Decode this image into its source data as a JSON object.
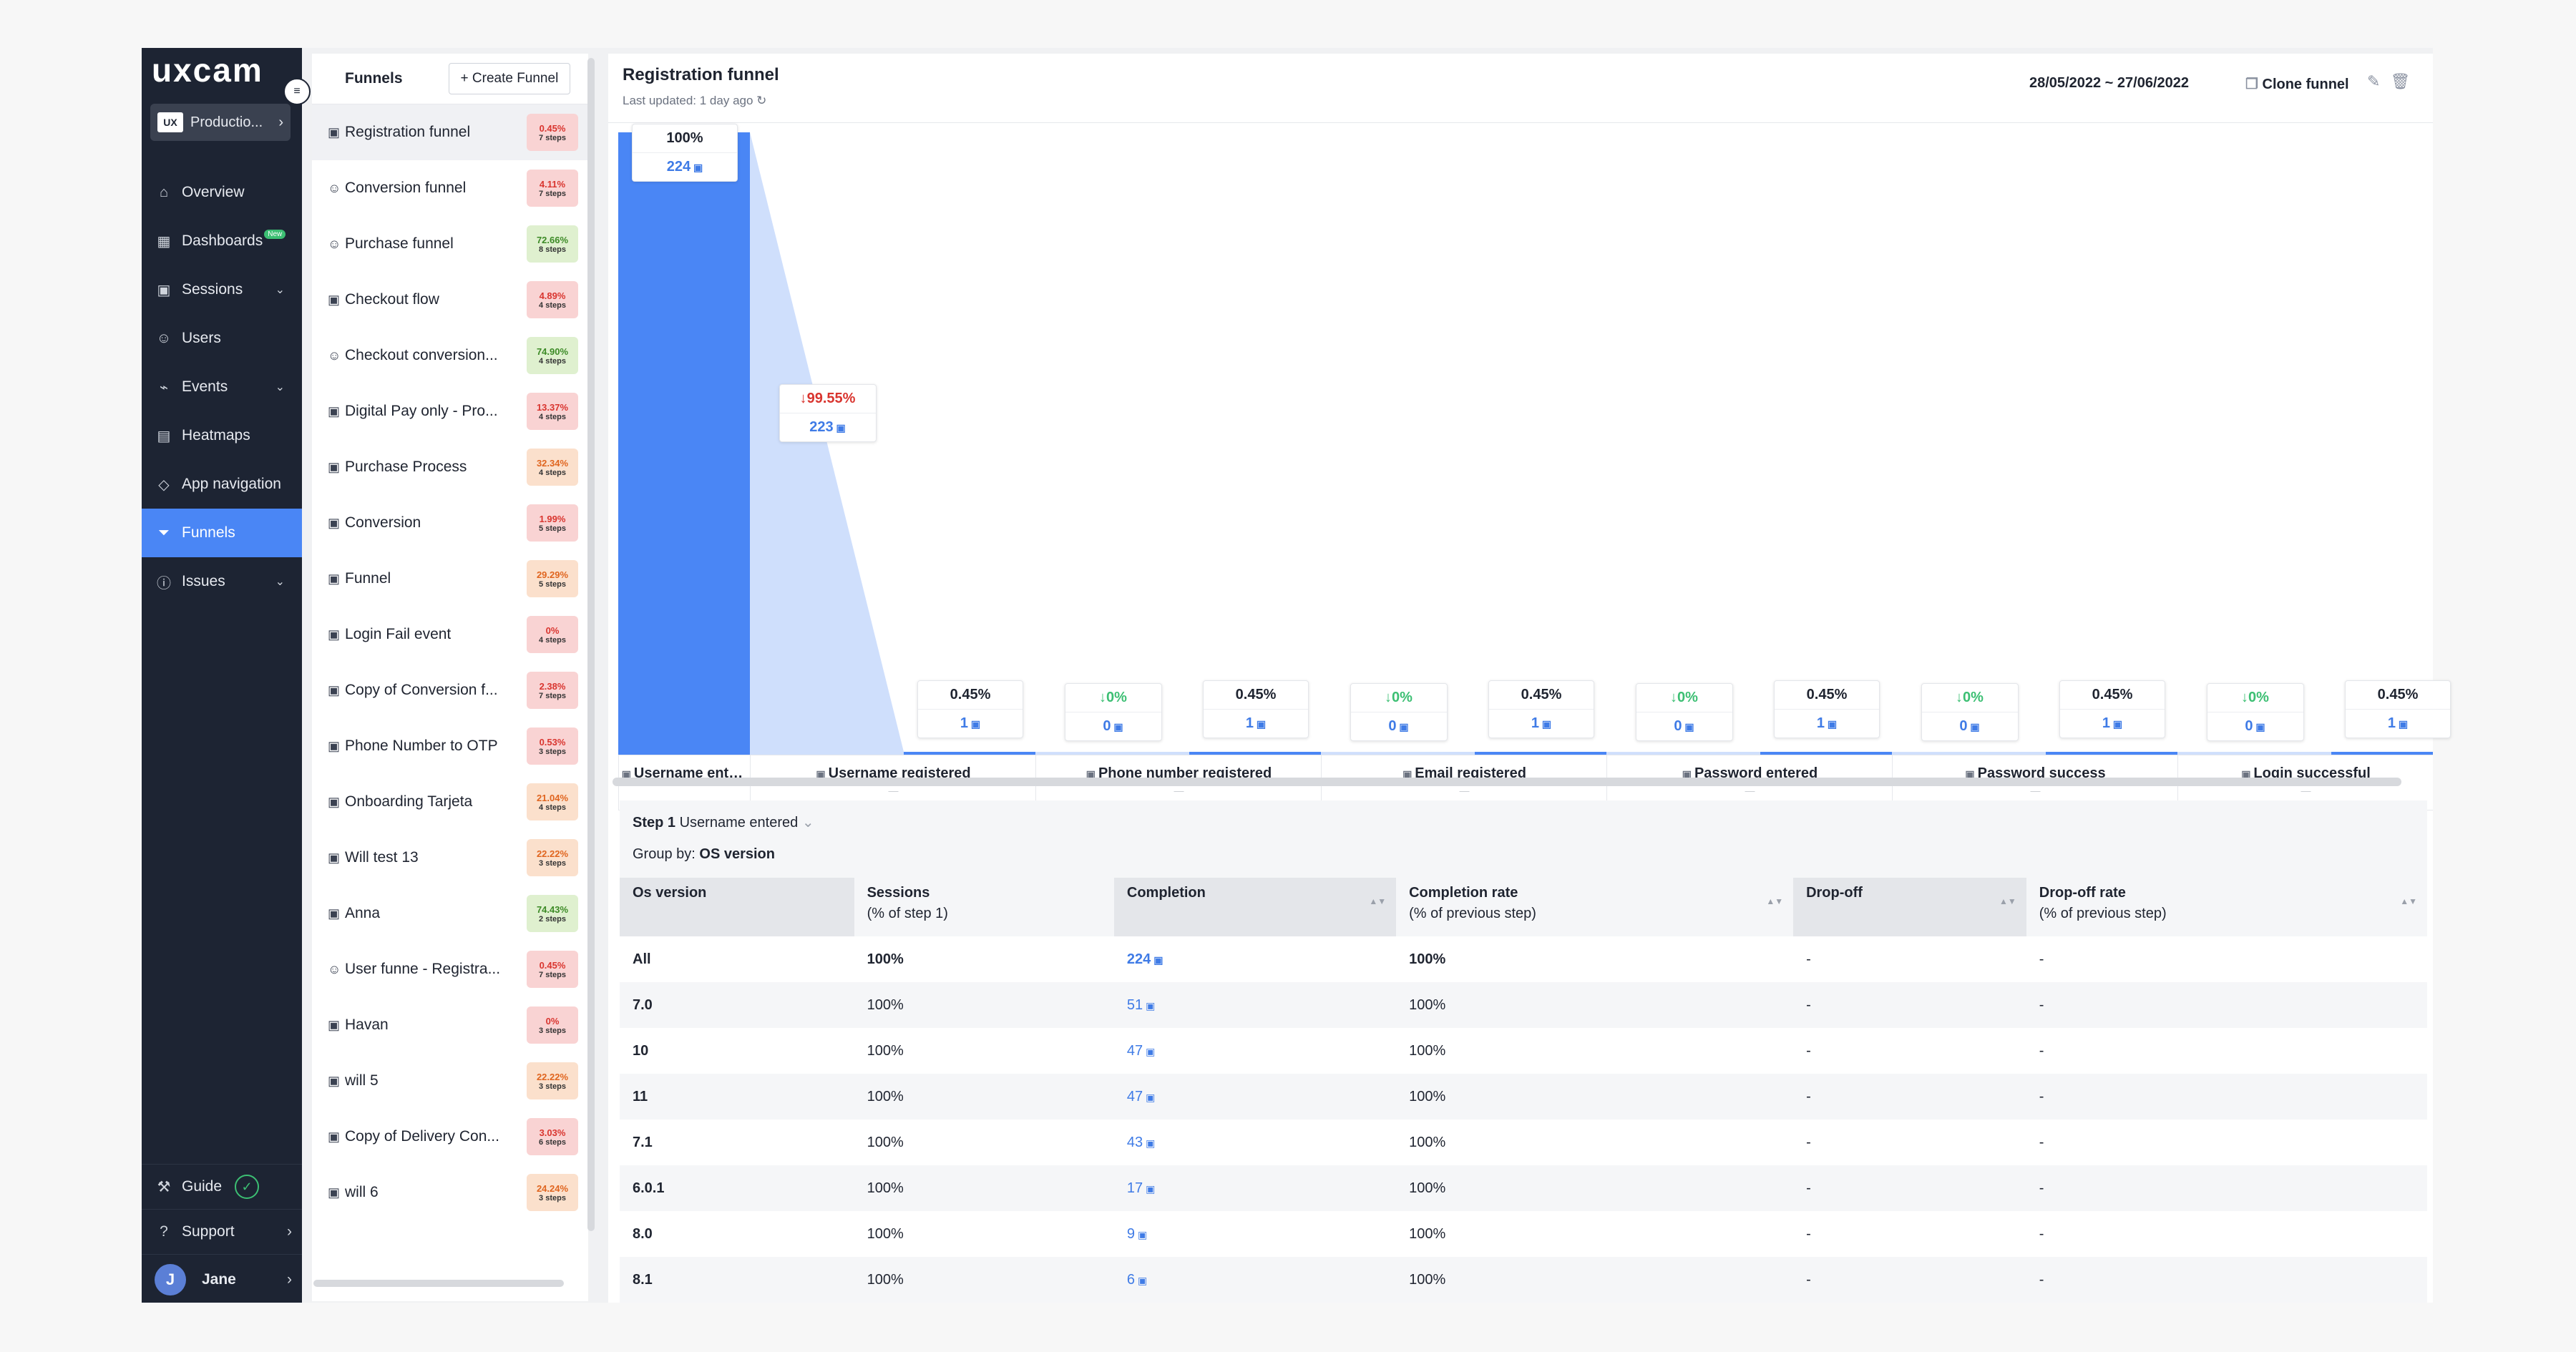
{
  "sidebar": {
    "logo": "uxcam",
    "project_badge": "UX",
    "project": "Productio...",
    "items": [
      {
        "label": "Overview",
        "icon": "home-icon",
        "caret": ""
      },
      {
        "label": "Dashboards",
        "icon": "dashboard-icon",
        "caret": "",
        "badge": "New"
      },
      {
        "label": "Sessions",
        "icon": "sessions-icon",
        "caret": "⌄"
      },
      {
        "label": "Users",
        "icon": "users-icon",
        "caret": ""
      },
      {
        "label": "Events",
        "icon": "events-icon",
        "caret": "⌄"
      },
      {
        "label": "Heatmaps",
        "icon": "heatmaps-icon",
        "caret": ""
      },
      {
        "label": "App navigation",
        "icon": "app-navigation-icon",
        "caret": ""
      },
      {
        "label": "Funnels",
        "icon": "funnel-icon",
        "caret": "",
        "active": true
      },
      {
        "label": "Issues",
        "icon": "issues-icon",
        "caret": "⌄"
      }
    ],
    "guide": "Guide",
    "support": "Support",
    "user_initial": "J",
    "user_name": "Jane"
  },
  "funnels": {
    "title": "Funnels",
    "create_label": "+ Create Funnel",
    "items": [
      {
        "name": "Registration funnel",
        "pct": "0.45%",
        "steps": "7 steps",
        "color": "red",
        "icon": "session-icon"
      },
      {
        "name": "Conversion funnel",
        "pct": "4.11%",
        "steps": "7 steps",
        "color": "red",
        "icon": "user-icon"
      },
      {
        "name": "Purchase funnel",
        "pct": "72.66%",
        "steps": "8 steps",
        "color": "green",
        "icon": "user-icon"
      },
      {
        "name": "Checkout flow",
        "pct": "4.89%",
        "steps": "4 steps",
        "color": "red",
        "icon": "session-icon"
      },
      {
        "name": "Checkout conversion...",
        "pct": "74.90%",
        "steps": "4 steps",
        "color": "green",
        "icon": "user-icon"
      },
      {
        "name": "Digital Pay only - Pro...",
        "pct": "13.37%",
        "steps": "4 steps",
        "color": "red",
        "icon": "session-icon"
      },
      {
        "name": "Purchase Process",
        "pct": "32.34%",
        "steps": "4 steps",
        "color": "orange",
        "icon": "session-icon"
      },
      {
        "name": "Conversion",
        "pct": "1.99%",
        "steps": "5 steps",
        "color": "red",
        "icon": "session-icon"
      },
      {
        "name": "Funnel",
        "pct": "29.29%",
        "steps": "5 steps",
        "color": "orange",
        "icon": "session-icon"
      },
      {
        "name": "Login Fail event",
        "pct": "0%",
        "steps": "4 steps",
        "color": "red",
        "icon": "session-icon"
      },
      {
        "name": "Copy of Conversion f...",
        "pct": "2.38%",
        "steps": "7 steps",
        "color": "red",
        "icon": "session-icon"
      },
      {
        "name": "Phone Number to OTP",
        "pct": "0.53%",
        "steps": "3 steps",
        "color": "red",
        "icon": "session-icon"
      },
      {
        "name": "Onboarding Tarjeta",
        "pct": "21.04%",
        "steps": "4 steps",
        "color": "orange",
        "icon": "session-icon"
      },
      {
        "name": "Will test 13",
        "pct": "22.22%",
        "steps": "3 steps",
        "color": "orange",
        "icon": "session-icon"
      },
      {
        "name": "Anna",
        "pct": "74.43%",
        "steps": "2 steps",
        "color": "green",
        "icon": "session-icon"
      },
      {
        "name": "User funne - Registra...",
        "pct": "0.45%",
        "steps": "7 steps",
        "color": "red",
        "icon": "user-icon"
      },
      {
        "name": "Havan",
        "pct": "0%",
        "steps": "3 steps",
        "color": "red",
        "icon": "session-icon"
      },
      {
        "name": "will 5",
        "pct": "22.22%",
        "steps": "3 steps",
        "color": "orange",
        "icon": "session-icon"
      },
      {
        "name": "Copy of Delivery Con...",
        "pct": "3.03%",
        "steps": "6 steps",
        "color": "red",
        "icon": "session-icon"
      },
      {
        "name": "will 6",
        "pct": "24.24%",
        "steps": "3 steps",
        "color": "orange",
        "icon": "session-icon"
      }
    ]
  },
  "header": {
    "title": "Registration funnel",
    "updated": "Last updated: 1 day ago",
    "date_range": "28/05/2022 ~ 27/06/2022",
    "clone_label": "Clone funnel"
  },
  "colors": {
    "bar": "#4a86f5",
    "dropoff_area": "#cfdffc",
    "down": "#d9352f",
    "up": "#3cbf73",
    "link": "#3f7be6"
  },
  "chart_data": {
    "type": "bar",
    "ylim": [
      0,
      224
    ],
    "steps": [
      {
        "name": "Username ente...",
        "conversion": "100%",
        "sessions": 224,
        "count_label": "224",
        "dropoff": "99.55%",
        "dropoff_count": "223",
        "dropoff_dir": "down"
      },
      {
        "name": "Username registered",
        "conversion": "0.45%",
        "sessions": 1,
        "count_label": "1",
        "dropoff": "0%",
        "dropoff_count": "0",
        "dropoff_dir": "up"
      },
      {
        "name": "Phone number registered",
        "conversion": "0.45%",
        "sessions": 1,
        "count_label": "1",
        "dropoff": "0%",
        "dropoff_count": "0",
        "dropoff_dir": "up"
      },
      {
        "name": "Email registered",
        "conversion": "0.45%",
        "sessions": 1,
        "count_label": "1",
        "dropoff": "0%",
        "dropoff_count": "0",
        "dropoff_dir": "up"
      },
      {
        "name": "Password entered",
        "conversion": "0.45%",
        "sessions": 1,
        "count_label": "1",
        "dropoff": "0%",
        "dropoff_count": "0",
        "dropoff_dir": "up"
      },
      {
        "name": "Password success",
        "conversion": "0.45%",
        "sessions": 1,
        "count_label": "1",
        "dropoff": "0%",
        "dropoff_count": "0",
        "dropoff_dir": "up"
      },
      {
        "name": "Login successful",
        "conversion": "0.45%",
        "sessions": 1,
        "count_label": "1"
      }
    ],
    "step_placeholder": "—"
  },
  "table": {
    "step_prefix": "Step 1",
    "step_name": "Username entered",
    "group_by_label": "Group by:",
    "group_by_value": "OS version",
    "columns": [
      {
        "title": "Os version",
        "sub": "",
        "sortable": false,
        "shade": true
      },
      {
        "title": "Sessions",
        "sub": "(% of step 1)",
        "sortable": false,
        "shade": false
      },
      {
        "title": "Completion",
        "sub": "",
        "sortable": true,
        "shade": true
      },
      {
        "title": "Completion rate",
        "sub": "(% of previous step)",
        "sortable": true,
        "shade": false
      },
      {
        "title": "Drop-off",
        "sub": "",
        "sortable": true,
        "shade": true
      },
      {
        "title": "Drop-off rate",
        "sub": "(% of previous step)",
        "sortable": true,
        "shade": false
      }
    ],
    "sort_icon": "▲▼",
    "rows": [
      {
        "os": "All",
        "sessions": "100%",
        "completion": "224",
        "completion_rate": "100%",
        "dropoff": "-",
        "dropoff_rate": "-"
      },
      {
        "os": "7.0",
        "sessions": "100%",
        "completion": "51",
        "completion_rate": "100%",
        "dropoff": "-",
        "dropoff_rate": "-"
      },
      {
        "os": "10",
        "sessions": "100%",
        "completion": "47",
        "completion_rate": "100%",
        "dropoff": "-",
        "dropoff_rate": "-"
      },
      {
        "os": "11",
        "sessions": "100%",
        "completion": "47",
        "completion_rate": "100%",
        "dropoff": "-",
        "dropoff_rate": "-"
      },
      {
        "os": "7.1",
        "sessions": "100%",
        "completion": "43",
        "completion_rate": "100%",
        "dropoff": "-",
        "dropoff_rate": "-"
      },
      {
        "os": "6.0.1",
        "sessions": "100%",
        "completion": "17",
        "completion_rate": "100%",
        "dropoff": "-",
        "dropoff_rate": "-"
      },
      {
        "os": "8.0",
        "sessions": "100%",
        "completion": "9",
        "completion_rate": "100%",
        "dropoff": "-",
        "dropoff_rate": "-"
      },
      {
        "os": "8.1",
        "sessions": "100%",
        "completion": "6",
        "completion_rate": "100%",
        "dropoff": "-",
        "dropoff_rate": "-"
      }
    ]
  }
}
